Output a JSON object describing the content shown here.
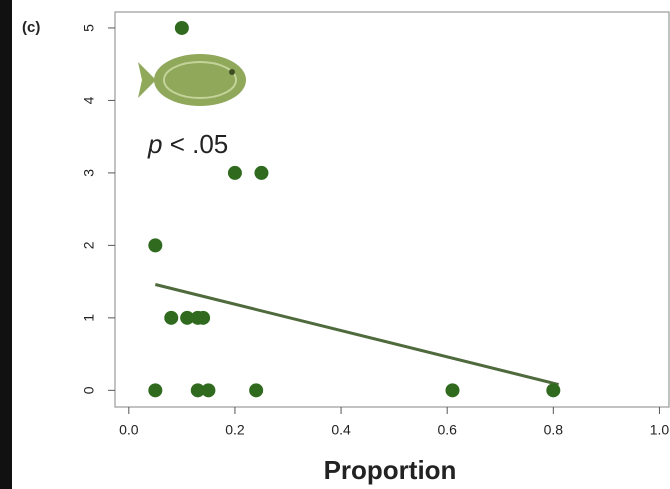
{
  "chart_data": {
    "type": "scatter",
    "panel_label": "(c)",
    "annotation": "p < .05",
    "x_label": "Proportion",
    "points": {
      "color": "#2f6a1f",
      "x": [
        0.1,
        0.2,
        0.25,
        0.05,
        0.08,
        0.11,
        0.13,
        0.14,
        0.05,
        0.13,
        0.15,
        0.24,
        0.61,
        0.8
      ],
      "y": [
        5,
        3,
        3,
        2,
        1,
        1,
        1,
        1,
        0,
        0,
        0,
        0,
        0,
        0
      ]
    },
    "trend": {
      "color": "#4f6a3c",
      "x": [
        0.05,
        0.81
      ],
      "y": [
        1.46,
        0.08
      ]
    },
    "xlim": [
      -0.026,
      1.018
    ],
    "ylim": [
      -0.23,
      5.22
    ],
    "xticks": [
      {
        "value": 0,
        "label": "0.0"
      },
      0.2,
      0.4,
      0.6,
      0.8,
      {
        "value": 1,
        "label": "1.0"
      }
    ],
    "yticks": [
      0,
      1,
      2,
      3,
      4,
      5
    ]
  }
}
